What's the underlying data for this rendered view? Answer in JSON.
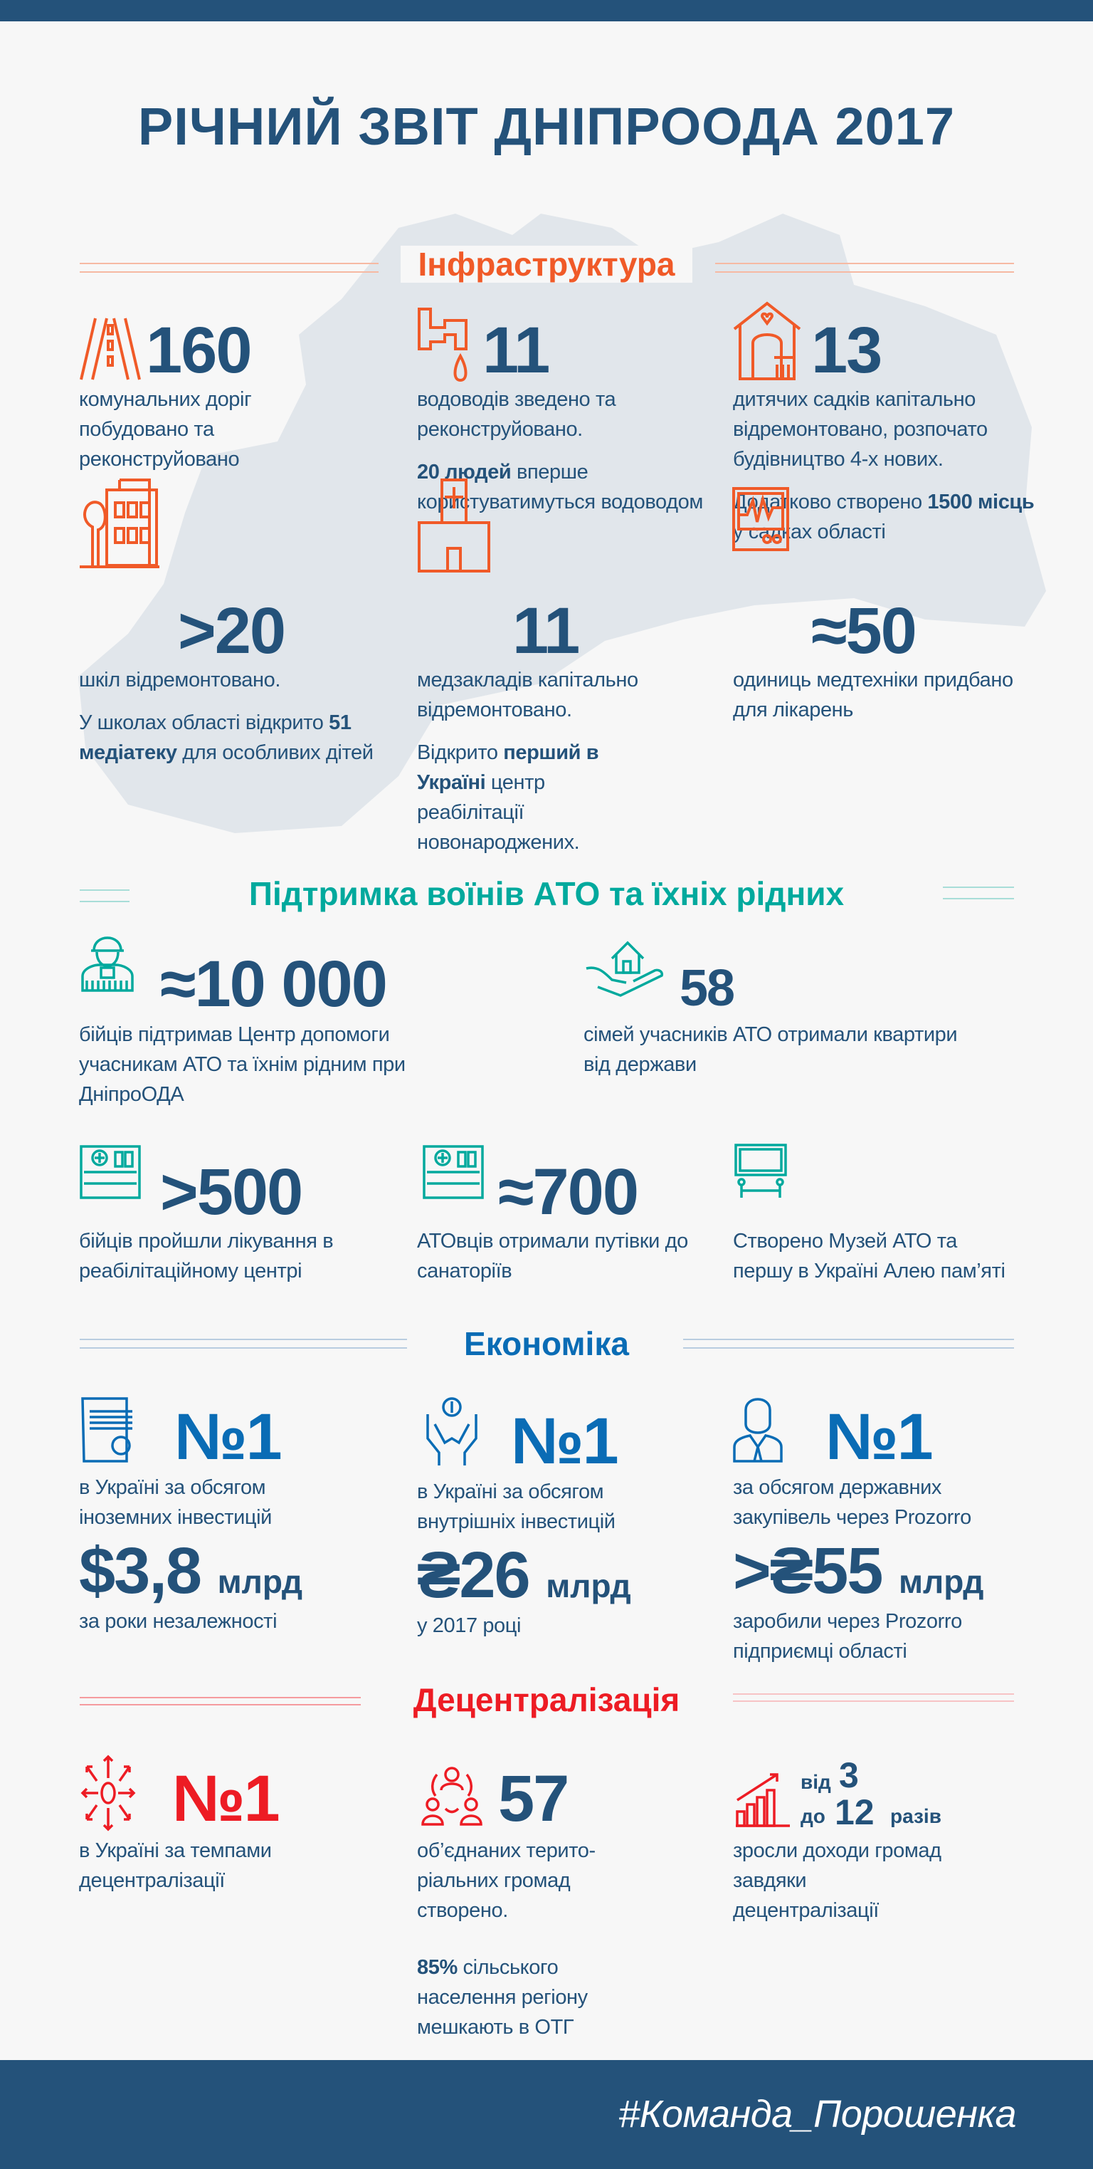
{
  "title": "РІЧНИЙ ЗВІТ ДНІПРООДА 2017",
  "colors": {
    "primary": "#24527a",
    "infrastructure": "#f05a28",
    "ato": "#00a99d",
    "economy": "#0a6cb5",
    "decentralization": "#ed1c24",
    "map": "#e1e6eb"
  },
  "infrastructure": {
    "heading": "Інфраструктура",
    "items": [
      {
        "icon": "road-icon",
        "number": "160",
        "lines": [
          "комунальних доріг побудовано та реконструйовано"
        ]
      },
      {
        "icon": "water-pipe-icon",
        "number": "11",
        "lines": [
          "водоводів зведено та реконструйовано."
        ],
        "p2_bold": "20 людей",
        "p2_rest": " вперше користуватимуться водоводом"
      },
      {
        "icon": "kindergarten-icon",
        "number": "13",
        "lines": [
          "дитячих садків капітально відремонтовано, розпочато будівництво 4-х нових."
        ],
        "p2_pre": "Додатково створено ",
        "p2_bold": "1500 місць",
        "p2_rest": " у садках області"
      },
      {
        "icon": "school-icon",
        "number": ">20",
        "lines": [
          "шкіл відремонтовано."
        ],
        "p2_pre": "У школах області відкрито ",
        "p2_bold": "51 медіатеку",
        "p2_rest": " для особливих дітей"
      },
      {
        "icon": "hospital-icon",
        "number": "11",
        "lines": [
          "медзакладів капітально відремонтовано."
        ],
        "p2_pre": "Відкрито ",
        "p2_bold": "перший в Україні",
        "p2_rest": " центр реабілітації новонароджених."
      },
      {
        "icon": "medical-monitor-icon",
        "number": "≈50",
        "lines": [
          "одиниць медтехніки придбано для лікарень"
        ]
      }
    ]
  },
  "ato": {
    "heading": "Підтримка воїнів АТО та їхніх рідних",
    "items": [
      {
        "icon": "soldier-icon",
        "number": "≈10 000",
        "text": "бійців підтримав Центр допомоги учасникам АТО та їхнім рідним при ДніпроОДА"
      },
      {
        "icon": "house-in-hand-icon",
        "number": "58",
        "text": "сімей учасників АТО отримали квартири від держави"
      },
      {
        "icon": "rehab-center-icon",
        "number": ">500",
        "text": "бійців пройшли лікування в реабілітаційному центрі"
      },
      {
        "icon": "sanatorium-icon",
        "number": "≈700",
        "text": "АТОвців отримали путівки до санаторіїв"
      },
      {
        "icon": "memorial-icon",
        "number": "",
        "text": "Створено Музей АТО та першу в Україні Алею пам’яті"
      }
    ]
  },
  "economy": {
    "heading": "Економіка",
    "items": [
      {
        "icon": "money-icon",
        "rank": "№1",
        "text": "в Україні за обсягом іноземних інвестицій",
        "amount": "$3,8",
        "unit": "млрд",
        "amount_text": "за роки незалежності"
      },
      {
        "icon": "hands-coin-icon",
        "rank": "№1",
        "text": "в Україні за обсягом внутрішніх інвестицій",
        "amount": "₴26",
        "unit": "млрд",
        "amount_text": "у 2017 році"
      },
      {
        "icon": "businessman-icon",
        "rank": "№1",
        "text": "за обсягом державних закупівель через Prozorro",
        "amount": ">₴55",
        "unit": "млрд",
        "amount_text": "заробили через Prozorro підприємці області"
      }
    ]
  },
  "decentralization": {
    "heading": "Децентралізація",
    "items": [
      {
        "icon": "arrows-out-icon",
        "rank": "№1",
        "text": "в Україні за темпами децентралізації"
      },
      {
        "icon": "community-icon",
        "number": "57",
        "text": "об’єднаних терито-ріальних громад створено.",
        "p2_bold": "85%",
        "p2_rest": " сільського населення регіону мешкають в ОТГ"
      },
      {
        "icon": "growth-chart-icon",
        "from_label": "від",
        "from": "3",
        "to_label": "до",
        "to": "12",
        "times": "разів",
        "text": "зросли доходи громад завдяки децентралізації"
      }
    ]
  },
  "footer": {
    "hashtag": "#Команда_Порошенка"
  }
}
